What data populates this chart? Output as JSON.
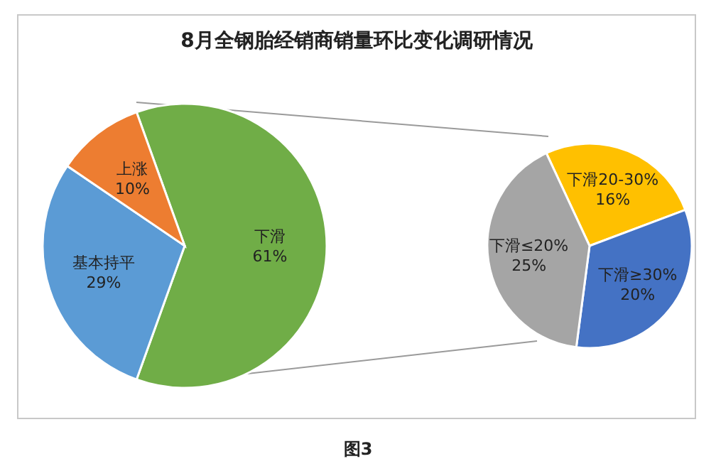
{
  "chart_data": [
    {
      "type": "pie",
      "title": "8月全钢胎经销商销量环比变化调研情况",
      "categories": [
        "下滑",
        "基本持平",
        "上涨"
      ],
      "values": [
        61,
        29,
        10
      ],
      "colors": [
        "#70ad47",
        "#5b9bd5",
        "#ed7d31"
      ],
      "value_labels": [
        "61%",
        "29%",
        "10%"
      ],
      "annotations": [
        "图3"
      ]
    },
    {
      "type": "pie",
      "categories": [
        "下滑20-30%",
        "下滑≥30%",
        "下滑≤20%"
      ],
      "values": [
        16,
        20,
        25
      ],
      "colors": [
        "#ffc000",
        "#4472c4",
        "#a5a5a5"
      ],
      "value_labels": [
        "16%",
        "20%",
        "25%"
      ]
    }
  ]
}
